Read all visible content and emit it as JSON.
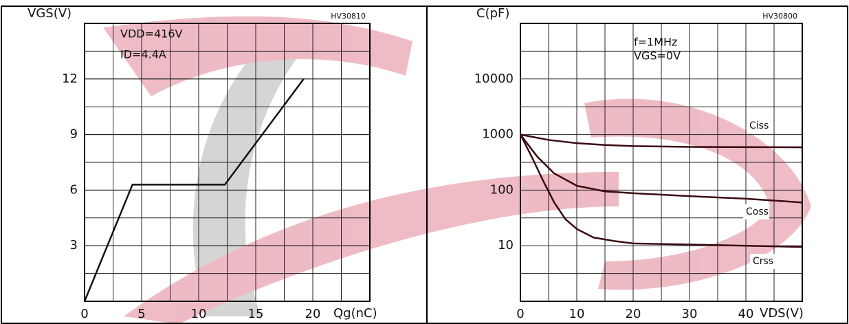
{
  "chart_data": [
    {
      "type": "line",
      "code": "HV30810",
      "x_label": "Qg(nC)",
      "y_label": "VGS(V)",
      "annotations": [
        "VDD=416V",
        "ID=4.4A"
      ],
      "xlim": [
        0,
        25
      ],
      "xticks": [
        0,
        5,
        10,
        15,
        20
      ],
      "ylim": [
        0,
        15
      ],
      "yticks": [
        3,
        6,
        9,
        12
      ],
      "grid": true,
      "series": [
        {
          "color": "#111111",
          "x": [
            0,
            4.2,
            12.3,
            19.2
          ],
          "values": [
            0,
            6.3,
            6.3,
            12
          ]
        }
      ]
    },
    {
      "type": "line",
      "code": "HV30800",
      "x_label": "VDS(V)",
      "y_label": "C(pF)",
      "annotations": [
        "f=1MHz",
        "VGS=0V"
      ],
      "xlim": [
        0,
        50
      ],
      "xticks": [
        0,
        10,
        20,
        30,
        40
      ],
      "ylim": [
        1,
        100000
      ],
      "yticks": [
        10,
        100,
        1000,
        10000
      ],
      "ylog": true,
      "grid": true,
      "series": [
        {
          "name": "Ciss",
          "color": "#3a0a10",
          "x": [
            0,
            5,
            10,
            15,
            20,
            30,
            50
          ],
          "values": [
            1000,
            800,
            700,
            650,
            620,
            600,
            590
          ]
        },
        {
          "name": "Coss",
          "color": "#3a0a10",
          "x": [
            0,
            3,
            6,
            10,
            15,
            20,
            30,
            40,
            50
          ],
          "values": [
            1000,
            400,
            200,
            120,
            95,
            88,
            78,
            70,
            60
          ]
        },
        {
          "name": "Crss",
          "color": "#3a0a10",
          "x": [
            0,
            2,
            4,
            6,
            8,
            10,
            13,
            17,
            20,
            30,
            50
          ],
          "values": [
            1000,
            400,
            150,
            60,
            30,
            20,
            14,
            12,
            11,
            10.5,
            9.5
          ]
        }
      ]
    }
  ]
}
